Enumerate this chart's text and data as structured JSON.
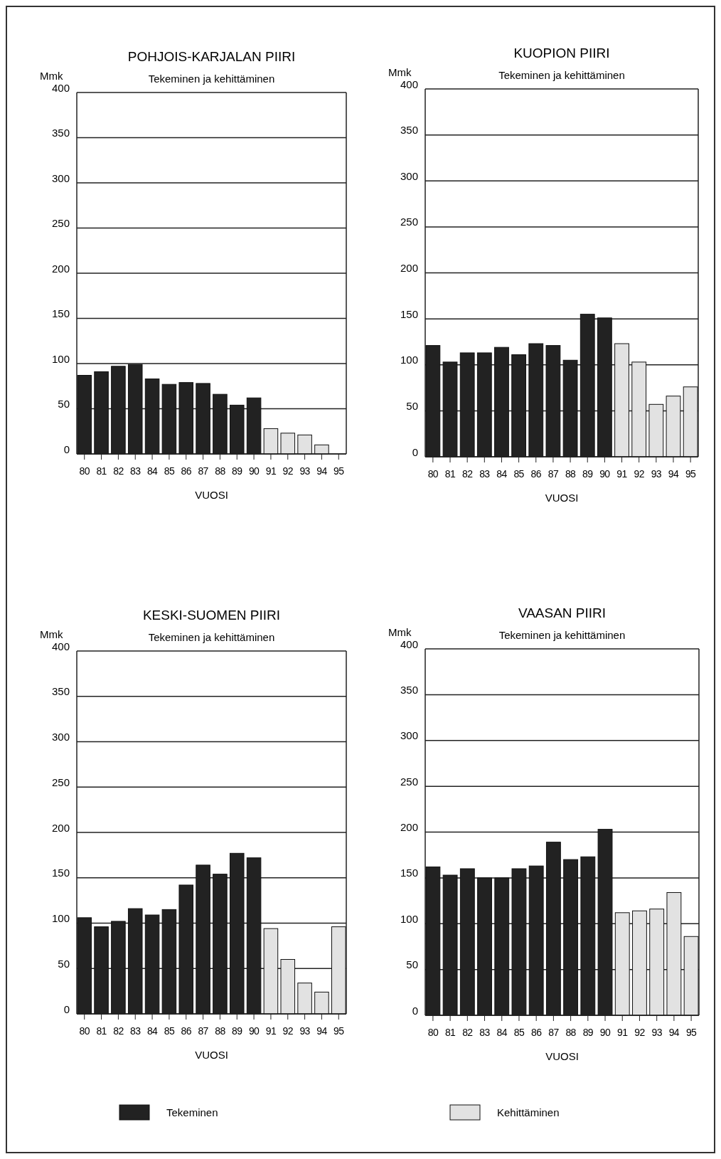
{
  "chart_data": [
    {
      "type": "bar",
      "title": "POHJOIS-KARJALAN PIIRI",
      "subtitle": "Tekeminen ja kehittäminen",
      "ylabel": "Mmk",
      "xlabel": "VUOSI",
      "categories": [
        "80",
        "81",
        "82",
        "83",
        "84",
        "85",
        "86",
        "87",
        "88",
        "89",
        "90",
        "91",
        "92",
        "93",
        "94",
        "95"
      ],
      "series": [
        {
          "color": "#222222",
          "values": [
            87,
            91,
            97,
            99,
            83,
            77,
            79,
            78,
            66,
            54,
            62,
            null,
            null,
            null,
            null,
            null
          ]
        },
        {
          "color": "#e2e2e2",
          "values": [
            null,
            null,
            null,
            null,
            null,
            null,
            null,
            null,
            null,
            null,
            null,
            28,
            23,
            21,
            10,
            null
          ]
        }
      ],
      "ylim": [
        0,
        400
      ],
      "yticks": [
        0,
        50,
        100,
        150,
        200,
        250,
        300,
        350,
        400
      ],
      "grid": "y"
    },
    {
      "type": "bar",
      "title": "KUOPION PIIRI",
      "subtitle": "Tekeminen ja kehittäminen",
      "ylabel": "Mmk",
      "xlabel": "VUOSI",
      "categories": [
        "80",
        "81",
        "82",
        "83",
        "84",
        "85",
        "86",
        "87",
        "88",
        "89",
        "90",
        "91",
        "92",
        "93",
        "94",
        "95"
      ],
      "series": [
        {
          "color": "#222222",
          "values": [
            121,
            103,
            113,
            113,
            119,
            111,
            123,
            121,
            105,
            155,
            151,
            null,
            null,
            null,
            null,
            null
          ]
        },
        {
          "color": "#e2e2e2",
          "values": [
            null,
            null,
            null,
            null,
            null,
            null,
            null,
            null,
            null,
            null,
            null,
            123,
            103,
            57,
            66,
            76
          ]
        }
      ],
      "ylim": [
        0,
        400
      ],
      "yticks": [
        0,
        50,
        100,
        150,
        200,
        250,
        300,
        350,
        400
      ],
      "grid": "y"
    },
    {
      "type": "bar",
      "title": "KESKI-SUOMEN PIIRI",
      "subtitle": "Tekeminen ja kehittäminen",
      "ylabel": "Mmk",
      "xlabel": "VUOSI",
      "categories": [
        "80",
        "81",
        "82",
        "83",
        "84",
        "85",
        "86",
        "87",
        "88",
        "89",
        "90",
        "91",
        "92",
        "93",
        "94",
        "95"
      ],
      "series": [
        {
          "color": "#222222",
          "values": [
            106,
            96,
            102,
            116,
            109,
            115,
            142,
            164,
            154,
            177,
            172,
            null,
            null,
            null,
            null,
            null
          ]
        },
        {
          "color": "#e2e2e2",
          "values": [
            null,
            null,
            null,
            null,
            null,
            null,
            null,
            null,
            null,
            null,
            null,
            94,
            60,
            34,
            24,
            96
          ]
        }
      ],
      "ylim": [
        0,
        400
      ],
      "yticks": [
        0,
        50,
        100,
        150,
        200,
        250,
        300,
        350,
        400
      ],
      "grid": "y"
    },
    {
      "type": "bar",
      "title": "VAASAN PIIRI",
      "subtitle": "Tekeminen ja kehittäminen",
      "ylabel": "Mmk",
      "xlabel": "VUOSI",
      "categories": [
        "80",
        "81",
        "82",
        "83",
        "84",
        "85",
        "86",
        "87",
        "88",
        "89",
        "90",
        "91",
        "92",
        "93",
        "94",
        "95"
      ],
      "series": [
        {
          "name": "Tekeminen",
          "color": "#222222",
          "values": [
            162,
            153,
            160,
            150,
            150,
            160,
            163,
            189,
            170,
            173,
            203,
            null,
            null,
            null,
            null,
            null
          ]
        },
        {
          "name": "Kehittäminen",
          "color": "#e2e2e2",
          "values": [
            null,
            null,
            null,
            null,
            null,
            null,
            null,
            null,
            null,
            null,
            null,
            112,
            114,
            116,
            134,
            86
          ]
        }
      ],
      "ylim": [
        0,
        400
      ],
      "yticks": [
        0,
        50,
        100,
        150,
        200,
        250,
        300,
        350,
        400
      ],
      "grid": "y",
      "legend": "bottom"
    }
  ]
}
